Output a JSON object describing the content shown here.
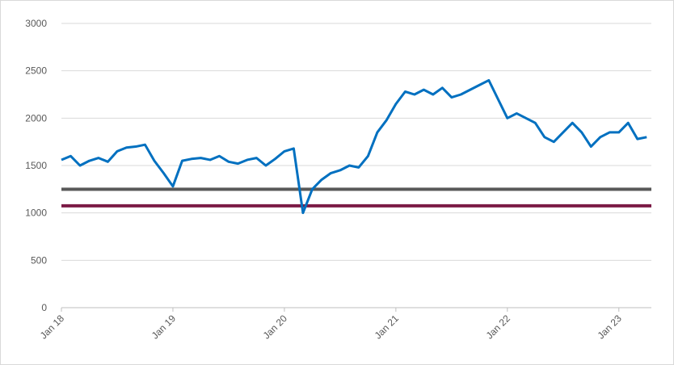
{
  "chart_data": {
    "type": "line",
    "x": [
      0,
      1,
      2,
      3,
      4,
      5,
      6,
      7,
      8,
      9,
      10,
      11,
      12,
      13,
      14,
      15,
      16,
      17,
      18,
      19,
      20,
      21,
      22,
      23,
      24,
      25,
      26,
      27,
      28,
      29,
      30,
      31,
      32,
      33,
      34,
      35,
      36,
      37,
      38,
      39,
      40,
      41,
      42,
      43,
      44,
      45,
      46,
      47,
      48,
      49,
      50,
      51,
      52,
      53,
      54,
      55,
      56,
      57,
      58,
      59,
      60,
      61,
      62,
      63
    ],
    "series": [
      {
        "color": "#0070c0",
        "values": [
          1560,
          1600,
          1500,
          1550,
          1580,
          1540,
          1650,
          1690,
          1700,
          1720,
          1550,
          1420,
          1280,
          1550,
          1570,
          1580,
          1560,
          1600,
          1540,
          1520,
          1560,
          1580,
          1500,
          1570,
          1650,
          1680,
          1000,
          1250,
          1350,
          1420,
          1450,
          1500,
          1480,
          1600,
          1850,
          1980,
          2150,
          2280,
          2250,
          2300,
          2250,
          2320,
          2220,
          2250,
          2300,
          2350,
          2400,
          2200,
          2000,
          2050,
          2000,
          1950,
          1800,
          1750,
          1850,
          1950,
          1850,
          1700,
          1800,
          1850,
          1850,
          1950,
          1780,
          1800
        ]
      }
    ],
    "reference_lines": [
      {
        "value": 1250,
        "color": "#595959"
      },
      {
        "value": 1075,
        "color": "#7b1a45"
      }
    ],
    "xlim": [
      0,
      63.5
    ],
    "xticks": [
      {
        "value": 0,
        "label": "Jan 18"
      },
      {
        "value": 12,
        "label": "Jan 19"
      },
      {
        "value": 24,
        "label": "Jan 20"
      },
      {
        "value": 36,
        "label": "Jan 21"
      },
      {
        "value": 48,
        "label": "Jan 22"
      },
      {
        "value": 60,
        "label": "Jan 23"
      }
    ],
    "ylim": [
      0,
      3000
    ],
    "yticks": [
      0,
      500,
      1000,
      1500,
      2000,
      2500,
      3000
    ],
    "grid": true
  }
}
